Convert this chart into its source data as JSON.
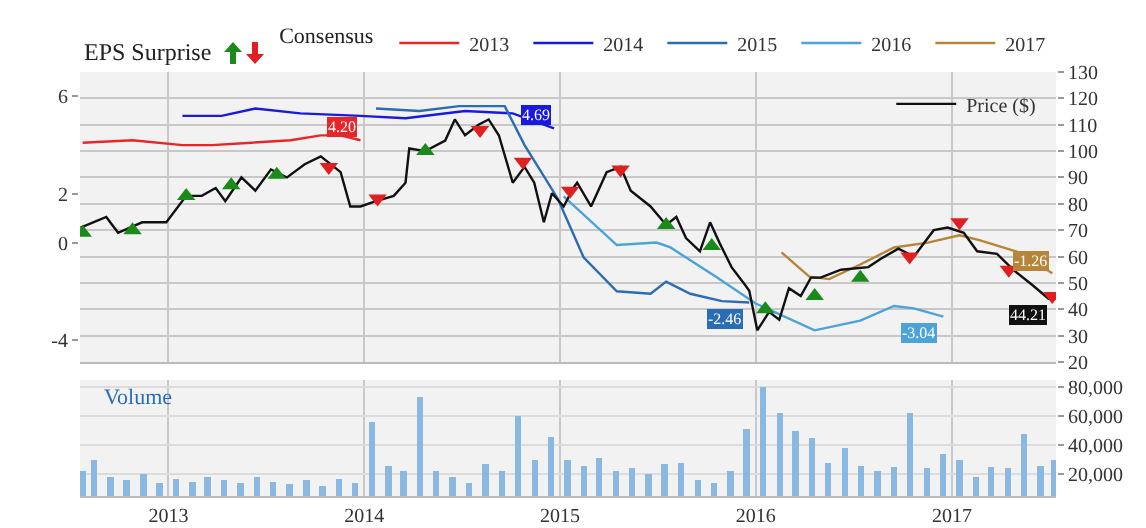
{
  "chart_data": [
    {
      "type": "line",
      "annotations": [
        "EPS Surprise"
      ],
      "legend_title": "Consensus",
      "legend": "top",
      "grid": true,
      "tick_labels": "y",
      "xlim": [
        "2012-07-20",
        "2017-07-14"
      ],
      "xticks": [
        "2013",
        "2014",
        "2015",
        "2016",
        "2017"
      ],
      "ylim": [
        -4.9,
        7
      ],
      "yticks": [
        -4,
        0,
        2,
        6
      ],
      "y2lim": [
        20,
        130
      ],
      "y2ticks": [
        20,
        30,
        40,
        50,
        60,
        70,
        80,
        90,
        100,
        110,
        120,
        130
      ],
      "series": [
        {
          "name": "2013",
          "color": "#e8262a",
          "axis": "y",
          "x": [
            "2012-07-25",
            "2012-10-26",
            "2013-01-27",
            "2013-03-23",
            "2013-06-05",
            "2013-08-17",
            "2013-10-12",
            "2013-11-18",
            "2013-12-25"
          ],
          "values": [
            4.1,
            4.2,
            4.0,
            4.0,
            4.1,
            4.2,
            4.4,
            4.4,
            4.2
          ],
          "value_labels": [
            null,
            null,
            null,
            null,
            null,
            null,
            null,
            null,
            "4.20"
          ]
        },
        {
          "name": "2014",
          "color": "#1a1adf",
          "axis": "y",
          "x": [
            "2013-01-27",
            "2013-04-10",
            "2013-06-12",
            "2013-09-04",
            "2013-12-25",
            "2014-03-19",
            "2014-07-08",
            "2014-10-05",
            "2014-12-21"
          ],
          "values": [
            5.2,
            5.2,
            5.5,
            5.3,
            5.2,
            5.1,
            5.4,
            5.3,
            4.69
          ],
          "value_labels": [
            null,
            null,
            null,
            null,
            null,
            null,
            null,
            null,
            "4.69"
          ]
        },
        {
          "name": "2015",
          "color": "#2a6db5",
          "axis": "y",
          "x": [
            "2014-01-23",
            "2014-04-14",
            "2014-06-27",
            "2014-09-20",
            "2014-10-27",
            "2014-12-28",
            "2015-02-14",
            "2015-04-17",
            "2015-06-19",
            "2015-07-18",
            "2015-09-01",
            "2015-10-30",
            "2015-12-20"
          ],
          "values": [
            5.5,
            5.4,
            5.6,
            5.6,
            4.0,
            1.8,
            -0.6,
            -2.0,
            -2.1,
            -1.6,
            -2.1,
            -2.4,
            -2.46
          ],
          "value_labels": [
            null,
            null,
            null,
            null,
            null,
            null,
            null,
            null,
            null,
            null,
            null,
            null,
            "-2.46"
          ]
        },
        {
          "name": "2016",
          "color": "#4ba3d8",
          "axis": "y",
          "x": [
            "2015-01-08",
            "2015-04-17",
            "2015-06-30",
            "2015-07-26",
            "2015-10-19",
            "2016-01-01",
            "2016-04-20",
            "2016-07-14",
            "2016-09-15",
            "2016-10-22",
            "2016-12-16"
          ],
          "values": [
            1.9,
            -0.1,
            0.0,
            -0.2,
            -1.4,
            -2.5,
            -3.6,
            -3.2,
            -2.6,
            -2.7,
            -3.04
          ],
          "value_labels": [
            null,
            null,
            null,
            null,
            null,
            null,
            null,
            null,
            null,
            null,
            "-3.04"
          ]
        },
        {
          "name": "2017",
          "color": "#b5863a",
          "axis": "y",
          "x": [
            "2016-02-18",
            "2016-04-10",
            "2016-05-17",
            "2016-07-14",
            "2016-09-15",
            "2016-11-17",
            "2017-01-15",
            "2017-02-21",
            "2017-05-06",
            "2017-07-07"
          ],
          "values": [
            -0.4,
            -1.4,
            -1.5,
            -0.9,
            -0.2,
            0.0,
            0.3,
            0.1,
            -0.4,
            -1.26
          ],
          "value_labels": [
            null,
            null,
            null,
            null,
            null,
            null,
            null,
            null,
            null,
            "-1.26"
          ]
        },
        {
          "name": "Price ($)",
          "color": "#111111",
          "axis": "y2",
          "x": [
            "2012-07-21",
            "2012-09-07",
            "2012-09-29",
            "2012-11-13",
            "2012-12-28",
            "2013-02-03",
            "2013-03-04",
            "2013-03-30",
            "2013-04-17",
            "2013-05-17",
            "2013-06-12",
            "2013-07-11",
            "2013-08-10",
            "2013-09-12",
            "2013-10-12",
            "2013-11-18",
            "2013-12-06",
            "2013-12-25",
            "2014-01-23",
            "2014-02-25",
            "2014-03-19",
            "2014-03-26",
            "2014-04-25",
            "2014-06-01",
            "2014-06-19",
            "2014-07-08",
            "2014-08-02",
            "2014-08-21",
            "2014-09-09",
            "2014-10-05",
            "2014-10-27",
            "2014-11-14",
            "2014-12-02",
            "2014-12-17",
            "2015-01-08",
            "2015-01-26",
            "2015-02-02",
            "2015-02-28",
            "2015-03-29",
            "2015-04-24",
            "2015-05-13",
            "2015-06-19",
            "2015-07-18",
            "2015-08-06",
            "2015-08-24",
            "2015-09-19",
            "2015-10-08",
            "2015-10-26",
            "2015-11-17",
            "2015-12-13",
            "2015-12-20",
            "2016-01-04",
            "2016-01-26",
            "2016-02-14",
            "2016-03-03",
            "2016-03-25",
            "2016-04-13",
            "2016-05-01",
            "2016-06-08",
            "2016-07-29",
            "2016-08-20",
            "2016-09-23",
            "2016-10-22",
            "2016-11-28",
            "2016-12-24",
            "2017-01-23",
            "2017-02-17",
            "2017-03-26",
            "2017-04-25",
            "2017-06-01",
            "2017-06-30",
            "2017-07-11"
          ],
          "values": [
            71,
            75,
            69,
            73,
            73,
            83,
            83,
            86,
            81,
            90,
            85,
            93,
            90,
            95,
            98,
            92,
            79,
            79,
            81,
            83,
            88,
            101,
            100,
            104,
            112,
            106,
            110,
            112,
            106,
            88,
            94,
            88,
            73,
            84,
            79,
            86,
            88,
            79,
            92,
            94,
            85,
            79,
            72,
            75,
            67,
            62,
            73,
            65,
            56,
            49,
            47,
            32,
            39,
            36,
            48,
            45,
            52,
            52,
            55,
            56,
            59,
            63,
            60,
            70,
            71,
            69,
            62,
            61,
            55,
            49,
            44,
            44.21
          ],
          "value_labels": [
            null,
            null,
            null,
            null,
            null,
            null,
            null,
            null,
            null,
            null,
            null,
            null,
            null,
            null,
            null,
            null,
            null,
            null,
            null,
            null,
            null,
            null,
            null,
            null,
            null,
            null,
            null,
            null,
            null,
            null,
            null,
            null,
            null,
            null,
            null,
            null,
            null,
            null,
            null,
            null,
            null,
            null,
            null,
            null,
            null,
            null,
            null,
            null,
            null,
            null,
            null,
            null,
            null,
            null,
            null,
            null,
            null,
            null,
            null,
            null,
            null,
            null,
            null,
            null,
            null,
            null,
            null,
            null,
            null,
            null,
            null,
            "44.21"
          ]
        },
        {
          "type": "scatter",
          "marker": "triangle",
          "color": "#1a8a1a",
          "axis": "y2",
          "x": [
            "2012-07-25",
            "2012-10-26",
            "2013-02-03",
            "2013-04-28",
            "2013-07-22",
            "2014-04-25",
            "2015-07-18",
            "2015-10-11",
            "2016-01-19",
            "2016-04-20",
            "2016-07-14"
          ],
          "values": [
            69,
            70,
            83,
            87,
            91,
            100,
            72,
            64,
            40,
            45,
            52
          ]
        },
        {
          "type": "scatter",
          "marker": "triangle",
          "color": "#e02020",
          "axis": "y2",
          "x": [
            "2013-10-27",
            "2014-01-26",
            "2014-08-05",
            "2014-10-24",
            "2015-01-20",
            "2015-04-24",
            "2016-10-14",
            "2017-01-15",
            "2017-04-17",
            "2017-07-07"
          ],
          "values": [
            94,
            82,
            108,
            96,
            85,
            93,
            60,
            73,
            55,
            45
          ]
        }
      ]
    },
    {
      "type": "bar",
      "annotations": [
        "Volume"
      ],
      "grid": true,
      "color": "#8bb8e0",
      "xlim": [
        "2012-07-20",
        "2017-07-14"
      ],
      "xticks": [
        "2013",
        "2014",
        "2015",
        "2016",
        "2017"
      ],
      "ylim": [
        5000,
        85000
      ],
      "yticks": [
        {
          "value": 20000,
          "label": "20,000"
        },
        {
          "value": 40000,
          "label": "40,000"
        },
        {
          "value": 60000,
          "label": "60,000"
        },
        {
          "value": 80000,
          "label": "80,000"
        }
      ],
      "x": [
        "2012-07-25",
        "2012-08-15",
        "2012-09-15",
        "2012-10-15",
        "2012-11-15",
        "2012-12-15",
        "2013-01-15",
        "2013-02-15",
        "2013-03-15",
        "2013-04-15",
        "2013-05-15",
        "2013-06-15",
        "2013-07-15",
        "2013-08-15",
        "2013-09-15",
        "2013-10-15",
        "2013-11-15",
        "2013-12-15",
        "2014-01-15",
        "2014-02-15",
        "2014-03-15",
        "2014-04-15",
        "2014-05-15",
        "2014-06-15",
        "2014-07-15",
        "2014-08-15",
        "2014-09-15",
        "2014-10-15",
        "2014-11-15",
        "2014-12-15",
        "2015-01-15",
        "2015-02-15",
        "2015-03-15",
        "2015-04-15",
        "2015-05-15",
        "2015-06-15",
        "2015-07-15",
        "2015-08-15",
        "2015-09-15",
        "2015-10-15",
        "2015-11-15",
        "2015-12-15",
        "2016-01-15",
        "2016-02-15",
        "2016-03-15",
        "2016-04-15",
        "2016-05-15",
        "2016-06-15",
        "2016-07-15",
        "2016-08-15",
        "2016-09-15",
        "2016-10-15",
        "2016-11-15",
        "2016-12-15",
        "2017-01-15",
        "2017-02-15",
        "2017-03-15",
        "2017-04-15",
        "2017-05-15",
        "2017-06-15",
        "2017-07-10"
      ],
      "values": [
        22000,
        30000,
        18000,
        16000,
        20000,
        14000,
        17000,
        15000,
        18000,
        16000,
        14000,
        18000,
        15000,
        13000,
        16000,
        12000,
        17000,
        14000,
        56000,
        26000,
        22000,
        73000,
        22000,
        18000,
        14000,
        27000,
        22000,
        60000,
        30000,
        46000,
        30000,
        26000,
        31000,
        22000,
        24000,
        20000,
        27000,
        28000,
        16000,
        14000,
        22000,
        51000,
        80000,
        62000,
        50000,
        45000,
        28000,
        38000,
        26000,
        22000,
        25000,
        62000,
        24000,
        34000,
        30000,
        18000,
        25000,
        24000,
        48000,
        26000,
        30000
      ]
    }
  ]
}
